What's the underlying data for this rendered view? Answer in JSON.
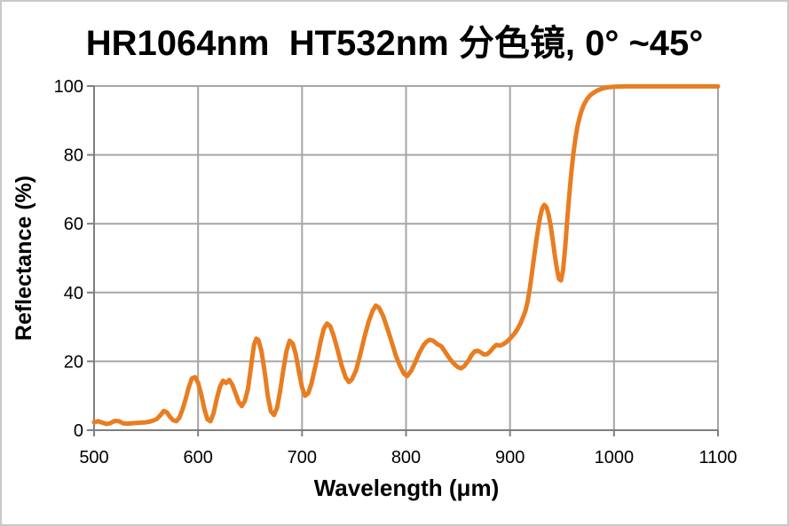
{
  "page": {
    "background": "#ffffff",
    "frame_color": "#c9c9c9"
  },
  "chart_data": {
    "type": "line",
    "title": "HR1064nm  HT532nm 分色镜, 0° ~45°",
    "xlabel": "Wavelength (μm)",
    "ylabel": "Reflectance (%)",
    "xlim": [
      500,
      1100
    ],
    "ylim": [
      0,
      100
    ],
    "xticks": [
      500,
      600,
      700,
      800,
      900,
      1000,
      1100
    ],
    "yticks": [
      0,
      20,
      40,
      60,
      80,
      100
    ],
    "grid": true,
    "legend_position": "none",
    "grid_color": "#a6a6a6",
    "axis_color": "#7f7f7f",
    "series": [
      {
        "name": "Reflectance",
        "color": "#e87d21",
        "points": [
          [
            500,
            2.3
          ],
          [
            504,
            2.6
          ],
          [
            508,
            2.2
          ],
          [
            512,
            1.8
          ],
          [
            516,
            2.1
          ],
          [
            520,
            2.7
          ],
          [
            524,
            2.6
          ],
          [
            528,
            2.0
          ],
          [
            532,
            1.9
          ],
          [
            536,
            2.0
          ],
          [
            540,
            2.1
          ],
          [
            545,
            2.2
          ],
          [
            550,
            2.3
          ],
          [
            555,
            2.6
          ],
          [
            560,
            3.2
          ],
          [
            564,
            4.4
          ],
          [
            567,
            5.6
          ],
          [
            570,
            5.2
          ],
          [
            573,
            3.9
          ],
          [
            576,
            2.9
          ],
          [
            579,
            2.6
          ],
          [
            582,
            3.6
          ],
          [
            585,
            6.0
          ],
          [
            588,
            9.0
          ],
          [
            591,
            12.4
          ],
          [
            594,
            15.0
          ],
          [
            597,
            15.4
          ],
          [
            600,
            13.8
          ],
          [
            603,
            10.5
          ],
          [
            606,
            6.2
          ],
          [
            609,
            3.2
          ],
          [
            612,
            2.6
          ],
          [
            615,
            5.0
          ],
          [
            618,
            9.2
          ],
          [
            621,
            12.6
          ],
          [
            624,
            14.4
          ],
          [
            627,
            13.7
          ],
          [
            630,
            14.6
          ],
          [
            633,
            13.2
          ],
          [
            636,
            10.8
          ],
          [
            639,
            8.2
          ],
          [
            642,
            7.0
          ],
          [
            645,
            8.5
          ],
          [
            648,
            12.0
          ],
          [
            650,
            16.5
          ],
          [
            652,
            21.0
          ],
          [
            654,
            25.0
          ],
          [
            656,
            26.6
          ],
          [
            658,
            26.2
          ],
          [
            661,
            23.0
          ],
          [
            664,
            17.0
          ],
          [
            667,
            10.0
          ],
          [
            670,
            5.5
          ],
          [
            673,
            4.4
          ],
          [
            676,
            6.5
          ],
          [
            679,
            11.5
          ],
          [
            682,
            17.5
          ],
          [
            685,
            23.0
          ],
          [
            688,
            26.0
          ],
          [
            691,
            25.2
          ],
          [
            694,
            22.0
          ],
          [
            697,
            17.0
          ],
          [
            700,
            12.5
          ],
          [
            703,
            10.0
          ],
          [
            706,
            10.8
          ],
          [
            709,
            13.5
          ],
          [
            712,
            17.5
          ],
          [
            715,
            21.5
          ],
          [
            718,
            26.0
          ],
          [
            721,
            29.5
          ],
          [
            724,
            31.0
          ],
          [
            727,
            30.2
          ],
          [
            730,
            27.8
          ],
          [
            734,
            23.5
          ],
          [
            738,
            18.8
          ],
          [
            742,
            15.3
          ],
          [
            745,
            14.0
          ],
          [
            748,
            14.8
          ],
          [
            752,
            17.5
          ],
          [
            756,
            22.0
          ],
          [
            760,
            27.0
          ],
          [
            764,
            31.5
          ],
          [
            768,
            34.8
          ],
          [
            771,
            36.2
          ],
          [
            774,
            35.6
          ],
          [
            778,
            33.2
          ],
          [
            782,
            29.6
          ],
          [
            786,
            25.8
          ],
          [
            790,
            21.8
          ],
          [
            794,
            18.8
          ],
          [
            798,
            16.4
          ],
          [
            801,
            15.7
          ],
          [
            805,
            17.3
          ],
          [
            809,
            19.8
          ],
          [
            813,
            22.6
          ],
          [
            817,
            24.8
          ],
          [
            820,
            25.8
          ],
          [
            823,
            26.3
          ],
          [
            826,
            26.0
          ],
          [
            830,
            25.0
          ],
          [
            834,
            24.4
          ],
          [
            838,
            22.6
          ],
          [
            842,
            20.8
          ],
          [
            846,
            19.3
          ],
          [
            850,
            18.3
          ],
          [
            853,
            18.0
          ],
          [
            856,
            18.6
          ],
          [
            860,
            20.2
          ],
          [
            863,
            21.8
          ],
          [
            866,
            22.9
          ],
          [
            869,
            23.1
          ],
          [
            872,
            22.6
          ],
          [
            875,
            22.0
          ],
          [
            878,
            22.1
          ],
          [
            881,
            22.9
          ],
          [
            884,
            24.0
          ],
          [
            887,
            24.8
          ],
          [
            890,
            24.6
          ],
          [
            893,
            24.9
          ],
          [
            896,
            25.5
          ],
          [
            900,
            26.6
          ],
          [
            904,
            28.0
          ],
          [
            907,
            29.3
          ],
          [
            910,
            31.0
          ],
          [
            913,
            33.2
          ],
          [
            915,
            34.8
          ],
          [
            917,
            37.5
          ],
          [
            919,
            41.0
          ],
          [
            921,
            45.5
          ],
          [
            923,
            50.0
          ],
          [
            925,
            54.5
          ],
          [
            927,
            58.5
          ],
          [
            929,
            62.0
          ],
          [
            931,
            64.5
          ],
          [
            933,
            65.5
          ],
          [
            935,
            64.8
          ],
          [
            937,
            62.8
          ],
          [
            939,
            59.5
          ],
          [
            941,
            55.5
          ],
          [
            943,
            51.0
          ],
          [
            945,
            47.0
          ],
          [
            947,
            44.0
          ],
          [
            949,
            43.5
          ],
          [
            951,
            46.5
          ],
          [
            953,
            53.0
          ],
          [
            955,
            61.0
          ],
          [
            957,
            68.5
          ],
          [
            959,
            75.0
          ],
          [
            961,
            80.5
          ],
          [
            963,
            85.0
          ],
          [
            965,
            88.5
          ],
          [
            967,
            91.0
          ],
          [
            969,
            93.0
          ],
          [
            971,
            94.6
          ],
          [
            974,
            96.2
          ],
          [
            977,
            97.3
          ],
          [
            980,
            98.0
          ],
          [
            984,
            98.7
          ],
          [
            988,
            99.2
          ],
          [
            992,
            99.5
          ],
          [
            996,
            99.7
          ],
          [
            1000,
            99.8
          ],
          [
            1010,
            99.9
          ],
          [
            1025,
            99.9
          ],
          [
            1050,
            99.9
          ],
          [
            1075,
            99.9
          ],
          [
            1100,
            99.9
          ]
        ]
      }
    ]
  }
}
